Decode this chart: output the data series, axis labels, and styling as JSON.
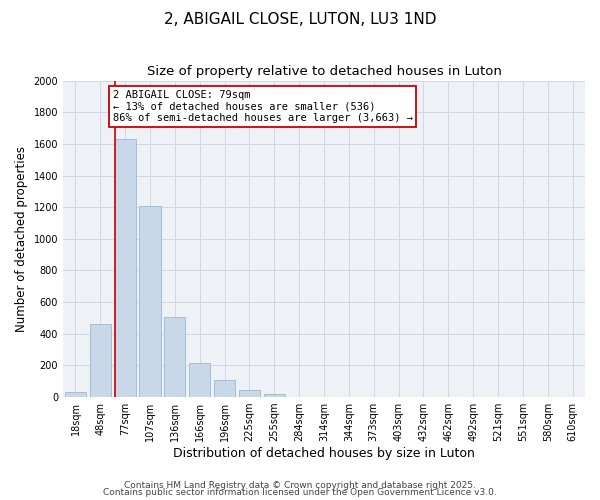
{
  "title": "2, ABIGAIL CLOSE, LUTON, LU3 1ND",
  "subtitle": "Size of property relative to detached houses in Luton",
  "xlabel": "Distribution of detached houses by size in Luton",
  "ylabel": "Number of detached properties",
  "bar_labels": [
    "18sqm",
    "48sqm",
    "77sqm",
    "107sqm",
    "136sqm",
    "166sqm",
    "196sqm",
    "225sqm",
    "255sqm",
    "284sqm",
    "314sqm",
    "344sqm",
    "373sqm",
    "403sqm",
    "432sqm",
    "462sqm",
    "492sqm",
    "521sqm",
    "551sqm",
    "580sqm",
    "610sqm"
  ],
  "bar_values": [
    30,
    460,
    1630,
    1210,
    505,
    215,
    110,
    45,
    20,
    0,
    0,
    0,
    0,
    0,
    0,
    0,
    0,
    0,
    0,
    0,
    0
  ],
  "bar_color": "#c8d8e8",
  "bar_edge_color": "#a0b8cc",
  "vline_bar_index": 2,
  "vline_color": "#cc0000",
  "annotation_line1": "2 ABIGAIL CLOSE: 79sqm",
  "annotation_line2": "← 13% of detached houses are smaller (536)",
  "annotation_line3": "86% of semi-detached houses are larger (3,663) →",
  "annotation_box_color": "#cc0000",
  "ylim": [
    0,
    2000
  ],
  "yticks": [
    0,
    200,
    400,
    600,
    800,
    1000,
    1200,
    1400,
    1600,
    1800,
    2000
  ],
  "grid_color": "#d0d8e8",
  "background_color": "#eef2f7",
  "footer1": "Contains HM Land Registry data © Crown copyright and database right 2025.",
  "footer2": "Contains public sector information licensed under the Open Government Licence v3.0.",
  "title_fontsize": 11,
  "subtitle_fontsize": 9.5,
  "xlabel_fontsize": 9,
  "ylabel_fontsize": 8.5,
  "tick_fontsize": 7,
  "annotation_fontsize": 7.5,
  "footer_fontsize": 6.5
}
